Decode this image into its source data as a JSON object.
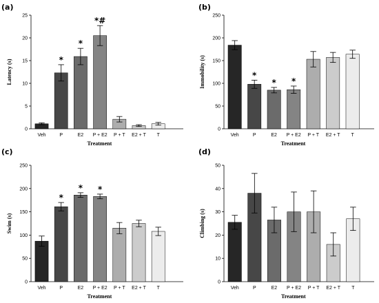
{
  "chart_data": [
    {
      "panel": "(a)",
      "type": "bar",
      "categories": [
        "Veh",
        "P",
        "E2",
        "P + E2",
        "P + T",
        "E2 + T",
        "T"
      ],
      "values": [
        1.1,
        12.3,
        15.9,
        20.5,
        2.1,
        0.7,
        1.1
      ],
      "errors": [
        0.2,
        1.8,
        1.8,
        2.2,
        0.6,
        0.2,
        0.3
      ],
      "annotations": [
        "",
        "*",
        "*",
        "*#",
        "",
        "",
        ""
      ],
      "xlabel": "Treatment",
      "ylabel": "Latency (s)",
      "ylim": [
        0,
        25
      ],
      "yticks": [
        0,
        5,
        10,
        15,
        20,
        25
      ]
    },
    {
      "panel": "(b)",
      "type": "bar",
      "categories": [
        "Veh",
        "P",
        "E2",
        "P + E2",
        "P + T",
        "E2 + T",
        "T"
      ],
      "values": [
        184,
        98,
        85,
        86,
        153,
        157,
        164
      ],
      "errors": [
        10,
        9,
        6,
        8,
        17,
        11,
        9
      ],
      "annotations": [
        "",
        "*",
        "*",
        "*",
        "",
        "",
        ""
      ],
      "xlabel": "Treatment",
      "ylabel": "Immobility (s)",
      "ylim": [
        0,
        250
      ],
      "yticks": [
        0,
        50,
        100,
        150,
        200,
        250
      ]
    },
    {
      "panel": "(c)",
      "type": "bar",
      "categories": [
        "Veh",
        "P",
        "E2",
        "P + E2",
        "P + T",
        "E2 + T",
        "T"
      ],
      "values": [
        87,
        161,
        186,
        183,
        115,
        125,
        108
      ],
      "errors": [
        11,
        9,
        5,
        5,
        12,
        7,
        9
      ],
      "annotations": [
        "",
        "*",
        "*",
        "*",
        "",
        "",
        ""
      ],
      "xlabel": "Treatment",
      "ylabel": "Swim (s)",
      "ylim": [
        0,
        250
      ],
      "yticks": [
        0,
        50,
        100,
        150,
        200,
        250
      ]
    },
    {
      "panel": "(d)",
      "type": "bar",
      "categories": [
        "Veh",
        "P",
        "E2",
        "P + E2",
        "P + T",
        "E2 + T",
        "T"
      ],
      "values": [
        25.5,
        38,
        26.5,
        30,
        30,
        16,
        27
      ],
      "errors": [
        3,
        8.5,
        5.5,
        8.5,
        9,
        5,
        5
      ],
      "annotations": [
        "",
        "",
        "",
        "",
        "",
        "",
        ""
      ],
      "xlabel": "Treatment",
      "ylabel": "Climbing (s)",
      "ylim": [
        0,
        50
      ],
      "yticks": [
        0,
        10,
        20,
        30,
        40,
        50
      ]
    }
  ],
  "colors": {
    "bar_fills": [
      "#262626",
      "#474747",
      "#6b6b6b",
      "#848484",
      "#adadad",
      "#cccccc",
      "#ececec"
    ],
    "axis": "#000000",
    "background": "#ffffff"
  }
}
